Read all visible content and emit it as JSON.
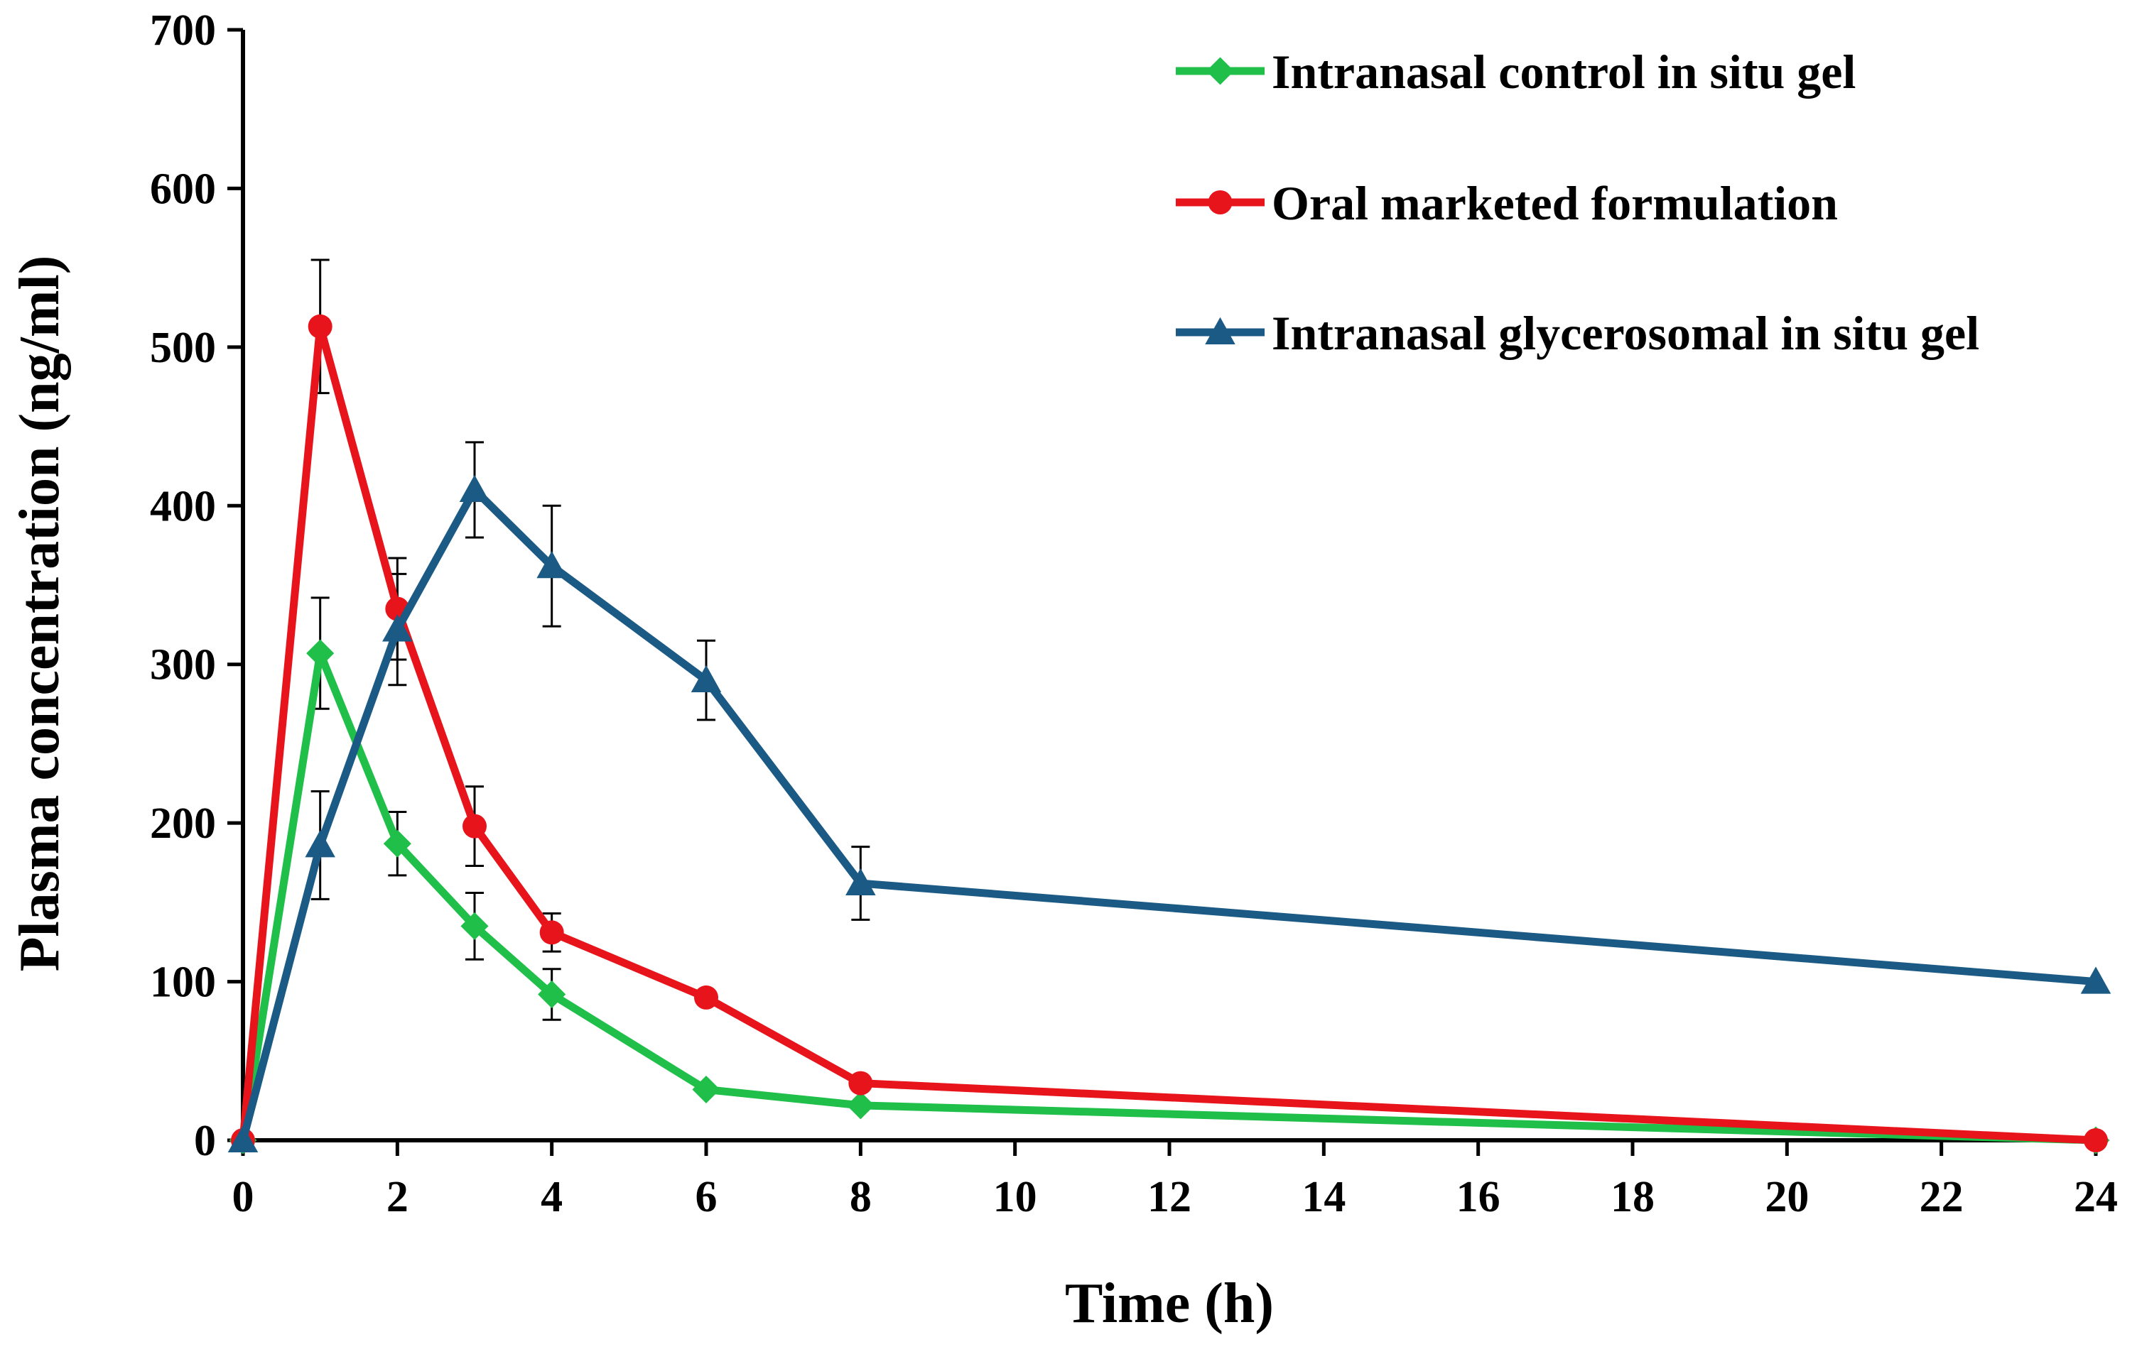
{
  "chart_data": {
    "type": "line",
    "title": "",
    "xlabel": "Time (h)",
    "ylabel": "Plasma concentration (ng/ml)",
    "xlim": [
      0,
      24
    ],
    "ylim": [
      0,
      700
    ],
    "xticks": [
      "0",
      "2",
      "4",
      "6",
      "8",
      "10",
      "12",
      "14",
      "16",
      "18",
      "20",
      "22",
      "24"
    ],
    "yticks": [
      "0",
      "100",
      "200",
      "300",
      "400",
      "500",
      "600",
      "700"
    ],
    "grid": false,
    "legend_position": "top-right",
    "series": [
      {
        "name": "Intranasal control in situ gel",
        "color": "#1fbf4a",
        "marker": "diamond",
        "x": [
          0,
          1,
          2,
          3,
          4,
          6,
          8,
          24
        ],
        "y": [
          0,
          307,
          187,
          135,
          92,
          32,
          22,
          0
        ],
        "err": [
          0,
          35,
          20,
          21,
          16,
          0,
          0,
          0
        ]
      },
      {
        "name": "Oral marketed formulation",
        "color": "#e8141b",
        "marker": "circle",
        "x": [
          0,
          1,
          2,
          3,
          4,
          6,
          8,
          24
        ],
        "y": [
          0,
          513,
          335,
          198,
          131,
          90,
          36,
          0
        ],
        "err": [
          0,
          42,
          32,
          25,
          12,
          0,
          0,
          0
        ]
      },
      {
        "name": "Intranasal glycerosomal in situ gel",
        "color": "#1b5a84",
        "marker": "triangle",
        "x": [
          0,
          1,
          2,
          3,
          4,
          6,
          8,
          24
        ],
        "y": [
          0,
          186,
          322,
          410,
          362,
          290,
          162,
          100
        ],
        "err": [
          0,
          34,
          35,
          30,
          38,
          25,
          23,
          0
        ]
      }
    ]
  }
}
